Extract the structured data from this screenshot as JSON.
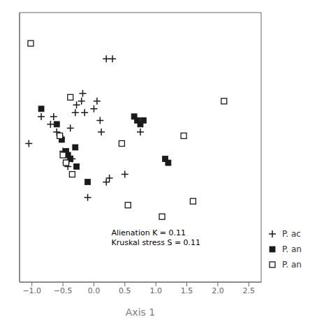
{
  "chart_data": {
    "type": "scatter",
    "xlabel": "Axis 1",
    "annotation": "Alienation K = 0.11\nKruskal stress S = 0.11",
    "xlim": [
      -1.2,
      2.7
    ],
    "ylim": [
      -1.6,
      1.9
    ],
    "xticks": [
      {
        "value": -1.0,
        "label": "−1.0"
      },
      {
        "value": -0.5,
        "label": "−0.5"
      },
      {
        "value": 0.0,
        "label": "0.0"
      },
      0.5,
      {
        "value": 1.0,
        "label": "1.0"
      },
      1.5,
      {
        "value": 2.0,
        "label": "2.0"
      },
      2.5
    ],
    "tick_labels": "x",
    "grid": false,
    "legend": "lower right",
    "series": [
      {
        "name": "P. ac",
        "marker": "plus",
        "color": "#1a1a1a",
        "x": [
          -1.05,
          -0.85,
          -0.7,
          -0.65,
          -0.6,
          -0.55,
          -0.5,
          -0.45,
          -0.42,
          -0.38,
          -0.35,
          -0.3,
          -0.28,
          -0.2,
          -0.18,
          -0.15,
          -0.1,
          0.0,
          0.05,
          0.1,
          0.12,
          0.2,
          0.25,
          0.3,
          0.5,
          0.75,
          0.2
        ],
        "y": [
          0.2,
          0.55,
          0.45,
          0.55,
          0.35,
          0.3,
          0.1,
          -0.05,
          -0.1,
          0.4,
          0.0,
          0.6,
          0.7,
          0.75,
          0.85,
          0.6,
          -0.5,
          0.65,
          0.75,
          0.5,
          0.35,
          -0.3,
          -0.25,
          1.3,
          -0.2,
          0.35,
          1.3
        ]
      },
      {
        "name": "P. an",
        "marker": "square",
        "color": "#1a1a1a",
        "x": [
          -0.85,
          -0.6,
          -0.52,
          -0.45,
          -0.42,
          -0.38,
          -0.35,
          -0.3,
          -0.28,
          -0.1,
          0.65,
          0.7,
          0.75,
          0.8,
          1.15,
          1.2
        ],
        "y": [
          0.65,
          0.45,
          0.25,
          0.1,
          0.05,
          0.0,
          -0.2,
          0.15,
          -0.1,
          -0.3,
          0.55,
          0.5,
          0.45,
          0.5,
          0.0,
          -0.05
        ]
      },
      {
        "name": "P. an",
        "marker": "open_square",
        "color": "#1a1a1a",
        "x": [
          -1.02,
          -0.55,
          -0.5,
          -0.45,
          -0.38,
          -0.35,
          0.45,
          0.55,
          1.1,
          1.45,
          1.6,
          2.1
        ],
        "y": [
          1.5,
          0.3,
          0.05,
          -0.05,
          0.8,
          -0.2,
          0.2,
          -0.6,
          -0.75,
          0.3,
          -0.55,
          0.75
        ]
      }
    ]
  }
}
